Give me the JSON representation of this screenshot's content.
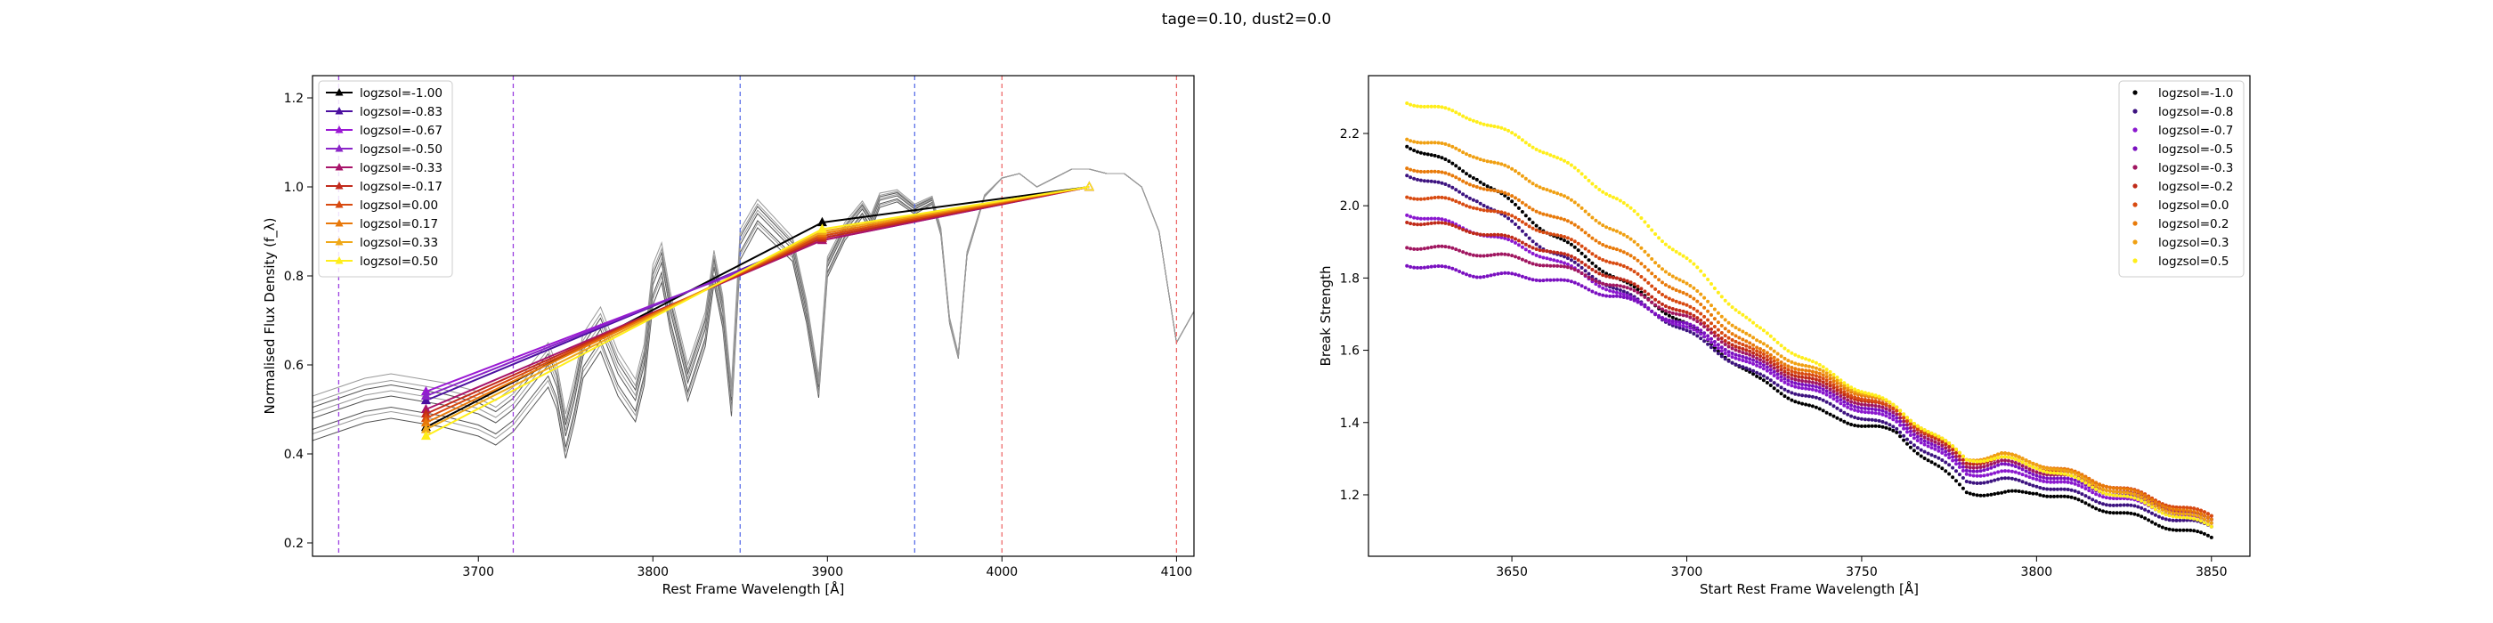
{
  "suptitle": "tage=0.10, dust2=0.0",
  "chart_data": [
    {
      "type": "line",
      "title": "",
      "xlabel": "Rest Frame Wavelength [Å]",
      "ylabel": "Normalised Flux Density (f_λ)",
      "xlim": [
        3605,
        4110
      ],
      "ylim": [
        0.17,
        1.25
      ],
      "xticks": [
        3700,
        3800,
        3900,
        4000,
        4100
      ],
      "yticks": [
        0.2,
        0.4,
        0.6,
        0.8,
        1.0,
        1.2
      ],
      "legend_position": "upper-left",
      "vertical_lines": [
        {
          "x": 3620,
          "color": "#9b3fe0"
        },
        {
          "x": 3720,
          "color": "#9b3fe0"
        },
        {
          "x": 3850,
          "color": "#5b6fe8"
        },
        {
          "x": 3950,
          "color": "#5b6fe8"
        },
        {
          "x": 4000,
          "color": "#ee6a6a"
        },
        {
          "x": 4100,
          "color": "#ee6a6a"
        }
      ],
      "spectrum_x": [
        3605,
        3620,
        3635,
        3650,
        3665,
        3680,
        3690,
        3700,
        3710,
        3720,
        3730,
        3740,
        3745,
        3750,
        3755,
        3760,
        3770,
        3780,
        3790,
        3795,
        3800,
        3805,
        3810,
        3820,
        3830,
        3835,
        3840,
        3845,
        3850,
        3860,
        3870,
        3880,
        3888,
        3895,
        3900,
        3910,
        3920,
        3925,
        3930,
        3940,
        3950,
        3960,
        3965,
        3970,
        3975,
        3980,
        3990,
        4000,
        4010,
        4020,
        4030,
        4040,
        4050,
        4060,
        4070,
        4080,
        4090,
        4100,
        4110
      ],
      "spectrum_y": [
        0.48,
        0.5,
        0.52,
        0.53,
        0.52,
        0.51,
        0.5,
        0.49,
        0.47,
        0.5,
        0.55,
        0.6,
        0.55,
        0.44,
        0.52,
        0.62,
        0.68,
        0.58,
        0.52,
        0.6,
        0.78,
        0.83,
        0.72,
        0.56,
        0.68,
        0.82,
        0.72,
        0.52,
        0.87,
        0.94,
        0.9,
        0.86,
        0.72,
        0.55,
        0.82,
        0.9,
        0.95,
        0.92,
        0.97,
        0.98,
        0.95,
        0.97,
        0.9,
        0.7,
        0.62,
        0.85,
        0.98,
        1.02,
        1.03,
        1.0,
        1.02,
        1.04,
        1.04,
        1.03,
        1.03,
        1.0,
        0.9,
        0.65,
        0.72
      ],
      "spectrum_variants": [
        -0.05,
        -0.025,
        0,
        0.025,
        0.05,
        -0.035,
        0.035,
        0.012
      ],
      "series": [
        {
          "name": "logzsol=-1.00",
          "color": "#000000",
          "x": [
            3670,
            3897,
            4050
          ],
          "y": [
            0.46,
            0.92,
            1.0
          ]
        },
        {
          "name": "logzsol=-0.83",
          "color": "#4b0fa0",
          "x": [
            3670,
            3897,
            4050
          ],
          "y": [
            0.52,
            0.89,
            1.0
          ]
        },
        {
          "name": "logzsol=-0.67",
          "color": "#9a18d4",
          "x": [
            3670,
            3897,
            4050
          ],
          "y": [
            0.54,
            0.88,
            1.0
          ]
        },
        {
          "name": "logzsol=-0.50",
          "color": "#8a24c8",
          "x": [
            3670,
            3897,
            4050
          ],
          "y": [
            0.53,
            0.885,
            1.0
          ]
        },
        {
          "name": "logzsol=-0.33",
          "color": "#a8146a",
          "x": [
            3670,
            3897,
            4050
          ],
          "y": [
            0.5,
            0.88,
            1.0
          ]
        },
        {
          "name": "logzsol=-0.17",
          "color": "#c22a1c",
          "x": [
            3670,
            3897,
            4050
          ],
          "y": [
            0.49,
            0.885,
            1.0
          ]
        },
        {
          "name": "logzsol=0.00",
          "color": "#d84a10",
          "x": [
            3670,
            3897,
            4050
          ],
          "y": [
            0.48,
            0.89,
            1.0
          ]
        },
        {
          "name": "logzsol=0.17",
          "color": "#e8780a",
          "x": [
            3670,
            3897,
            4050
          ],
          "y": [
            0.47,
            0.895,
            1.0
          ]
        },
        {
          "name": "logzsol=0.33",
          "color": "#f0a818",
          "x": [
            3670,
            3897,
            4050
          ],
          "y": [
            0.455,
            0.9,
            1.0
          ]
        },
        {
          "name": "logzsol=0.50",
          "color": "#ffee1a",
          "x": [
            3670,
            3897,
            4050
          ],
          "y": [
            0.44,
            0.905,
            1.0
          ]
        }
      ]
    },
    {
      "type": "scatter",
      "title": "",
      "xlabel": "Start Rest Frame Wavelength [Å]",
      "ylabel": "Break Strength",
      "xlim": [
        3609,
        3861
      ],
      "ylim": [
        1.03,
        2.36
      ],
      "xticks": [
        3650,
        3700,
        3750,
        3800,
        3850
      ],
      "yticks": [
        1.2,
        1.4,
        1.6,
        1.8,
        2.0,
        2.2
      ],
      "legend_position": "upper-right",
      "x_range": [
        3620,
        3850
      ],
      "series": [
        {
          "name": "logzsol=-1.0",
          "color": "#000000",
          "anchors": [
            [
              3620,
              2.17
            ],
            [
              3640,
              2.08
            ],
            [
              3660,
              1.93
            ],
            [
              3680,
              1.8
            ],
            [
              3700,
              1.67
            ],
            [
              3720,
              1.52
            ],
            [
              3740,
              1.42
            ],
            [
              3760,
              1.37
            ],
            [
              3780,
              1.21
            ],
            [
              3790,
              1.2
            ],
            [
              3800,
              1.21
            ],
            [
              3820,
              1.16
            ],
            [
              3850,
              1.08
            ]
          ]
        },
        {
          "name": "logzsol=-0.8",
          "color": "#3d1380",
          "anchors": [
            [
              3620,
              2.09
            ],
            [
              3640,
              2.02
            ],
            [
              3660,
              1.88
            ],
            [
              3680,
              1.77
            ],
            [
              3700,
              1.65
            ],
            [
              3720,
              1.53
            ],
            [
              3740,
              1.45
            ],
            [
              3760,
              1.38
            ],
            [
              3780,
              1.24
            ],
            [
              3790,
              1.24
            ],
            [
              3800,
              1.23
            ],
            [
              3820,
              1.18
            ],
            [
              3850,
              1.11
            ]
          ]
        },
        {
          "name": "logzsol=-0.7",
          "color": "#8a18cf",
          "anchors": [
            [
              3620,
              1.98
            ],
            [
              3640,
              1.93
            ],
            [
              3660,
              1.86
            ],
            [
              3680,
              1.76
            ],
            [
              3700,
              1.66
            ],
            [
              3720,
              1.55
            ],
            [
              3740,
              1.47
            ],
            [
              3760,
              1.4
            ],
            [
              3780,
              1.26
            ],
            [
              3790,
              1.26
            ],
            [
              3800,
              1.25
            ],
            [
              3820,
              1.2
            ],
            [
              3850,
              1.12
            ]
          ]
        },
        {
          "name": "logzsol=-0.5",
          "color": "#7a10c0",
          "anchors": [
            [
              3620,
              1.84
            ],
            [
              3640,
              1.81
            ],
            [
              3660,
              1.8
            ],
            [
              3680,
              1.75
            ],
            [
              3700,
              1.67
            ],
            [
              3720,
              1.56
            ],
            [
              3740,
              1.48
            ],
            [
              3760,
              1.41
            ],
            [
              3780,
              1.27
            ],
            [
              3790,
              1.28
            ],
            [
              3800,
              1.26
            ],
            [
              3820,
              1.21
            ],
            [
              3850,
              1.13
            ]
          ]
        },
        {
          "name": "logzsol=-0.3",
          "color": "#a01660",
          "anchors": [
            [
              3620,
              1.89
            ],
            [
              3640,
              1.87
            ],
            [
              3660,
              1.84
            ],
            [
              3680,
              1.78
            ],
            [
              3700,
              1.69
            ],
            [
              3720,
              1.57
            ],
            [
              3740,
              1.49
            ],
            [
              3760,
              1.42
            ],
            [
              3780,
              1.28
            ],
            [
              3790,
              1.29
            ],
            [
              3800,
              1.27
            ],
            [
              3820,
              1.22
            ],
            [
              3850,
              1.13
            ]
          ]
        },
        {
          "name": "logzsol=-0.2",
          "color": "#c02a18",
          "anchors": [
            [
              3620,
              1.96
            ],
            [
              3640,
              1.93
            ],
            [
              3660,
              1.88
            ],
            [
              3680,
              1.8
            ],
            [
              3700,
              1.7
            ],
            [
              3720,
              1.58
            ],
            [
              3740,
              1.5
            ],
            [
              3760,
              1.43
            ],
            [
              3780,
              1.29
            ],
            [
              3790,
              1.3
            ],
            [
              3800,
              1.28
            ],
            [
              3820,
              1.23
            ],
            [
              3850,
              1.14
            ]
          ]
        },
        {
          "name": "logzsol=0.0",
          "color": "#d84a10",
          "anchors": [
            [
              3620,
              2.03
            ],
            [
              3640,
              2.0
            ],
            [
              3660,
              1.93
            ],
            [
              3680,
              1.84
            ],
            [
              3700,
              1.72
            ],
            [
              3720,
              1.59
            ],
            [
              3740,
              1.51
            ],
            [
              3760,
              1.43
            ],
            [
              3780,
              1.3
            ],
            [
              3790,
              1.31
            ],
            [
              3800,
              1.29
            ],
            [
              3820,
              1.23
            ],
            [
              3850,
              1.14
            ]
          ]
        },
        {
          "name": "logzsol=0.2",
          "color": "#e87a0a",
          "anchors": [
            [
              3620,
              2.11
            ],
            [
              3640,
              2.06
            ],
            [
              3660,
              1.98
            ],
            [
              3680,
              1.88
            ],
            [
              3700,
              1.75
            ],
            [
              3720,
              1.6
            ],
            [
              3740,
              1.52
            ],
            [
              3760,
              1.44
            ],
            [
              3780,
              1.3
            ],
            [
              3790,
              1.31
            ],
            [
              3800,
              1.29
            ],
            [
              3820,
              1.23
            ],
            [
              3850,
              1.13
            ]
          ]
        },
        {
          "name": "logzsol=0.3",
          "color": "#f0a012",
          "anchors": [
            [
              3620,
              2.19
            ],
            [
              3640,
              2.14
            ],
            [
              3660,
              2.05
            ],
            [
              3680,
              1.93
            ],
            [
              3700,
              1.78
            ],
            [
              3720,
              1.62
            ],
            [
              3740,
              1.53
            ],
            [
              3760,
              1.44
            ],
            [
              3780,
              1.3
            ],
            [
              3790,
              1.31
            ],
            [
              3800,
              1.29
            ],
            [
              3820,
              1.22
            ],
            [
              3850,
              1.12
            ]
          ]
        },
        {
          "name": "logzsol=0.5",
          "color": "#ffee1a",
          "anchors": [
            [
              3620,
              2.29
            ],
            [
              3640,
              2.24
            ],
            [
              3660,
              2.15
            ],
            [
              3680,
              2.02
            ],
            [
              3700,
              1.85
            ],
            [
              3720,
              1.66
            ],
            [
              3740,
              1.54
            ],
            [
              3760,
              1.44
            ],
            [
              3780,
              1.3
            ],
            [
              3790,
              1.3
            ],
            [
              3800,
              1.28
            ],
            [
              3820,
              1.21
            ],
            [
              3850,
              1.11
            ]
          ]
        }
      ]
    }
  ]
}
